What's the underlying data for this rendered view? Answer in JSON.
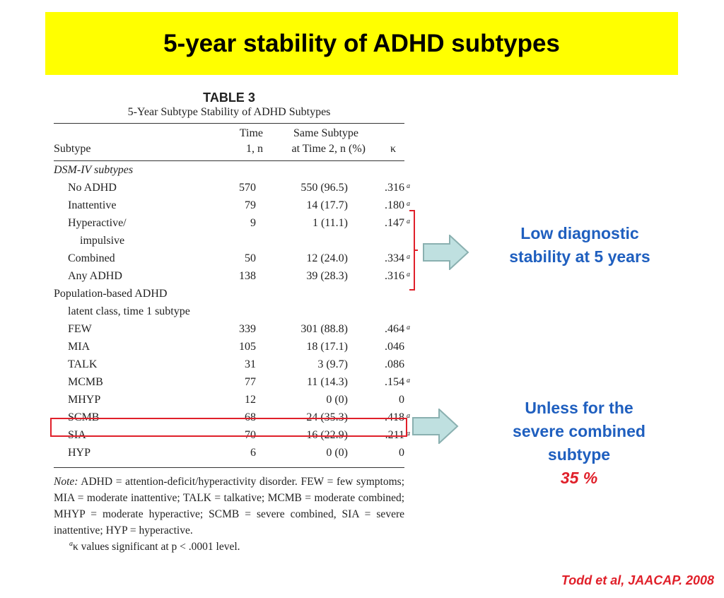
{
  "slide": {
    "title": "5-year stability of ADHD subtypes",
    "citation": "Todd et al, JAACAP. 2008",
    "colors": {
      "banner": "#ffff00",
      "callout": "#1f5fbf",
      "accent": "#e0202a",
      "arrow_fill": "#bfe0e0"
    }
  },
  "table": {
    "label": "TABLE 3",
    "caption": "5-Year Subtype Stability of ADHD Subtypes",
    "headers": {
      "subtype": "Subtype",
      "time1_line1": "Time",
      "time1_line2": "1, n",
      "same_line1": "Same Subtype",
      "same_line2": "at Time 2, n (%)",
      "kappa": "κ"
    },
    "sections": {
      "dsm": "DSM-IV subtypes",
      "pop_line1": "Population-based ADHD",
      "pop_line2": "latent class, time 1 subtype"
    },
    "dsm_rows": [
      {
        "subtype": "No ADHD",
        "n": "570",
        "same": "550 (96.5)",
        "kappa": ".316",
        "sig": "a"
      },
      {
        "subtype": "Inattentive",
        "n": "79",
        "same": "14 (17.7)",
        "kappa": ".180",
        "sig": "a"
      },
      {
        "subtype": "Hyperactive/",
        "subtype_cont": "impulsive",
        "n": "9",
        "same": "1 (11.1)",
        "kappa": ".147",
        "sig": "a"
      },
      {
        "subtype": "Combined",
        "n": "50",
        "same": "12 (24.0)",
        "kappa": ".334",
        "sig": "a"
      },
      {
        "subtype": "Any ADHD",
        "n": "138",
        "same": "39 (28.3)",
        "kappa": ".316",
        "sig": "a"
      }
    ],
    "pop_rows": [
      {
        "subtype": "FEW",
        "n": "339",
        "same": "301 (88.8)",
        "kappa": ".464",
        "sig": "a"
      },
      {
        "subtype": "MIA",
        "n": "105",
        "same": "18 (17.1)",
        "kappa": ".046",
        "sig": ""
      },
      {
        "subtype": "TALK",
        "n": "31",
        "same": "3 (9.7)",
        "kappa": ".086",
        "sig": ""
      },
      {
        "subtype": "MCMB",
        "n": "77",
        "same": "11 (14.3)",
        "kappa": ".154",
        "sig": "a"
      },
      {
        "subtype": "MHYP",
        "n": "12",
        "same": "0 (0)",
        "kappa": "0",
        "sig": ""
      },
      {
        "subtype": "SCMB",
        "n": "68",
        "same": "24 (35.3)",
        "kappa": ".418",
        "sig": "a"
      },
      {
        "subtype": "SIA",
        "n": "70",
        "same": "16 (22.9)",
        "kappa": ".211",
        "sig": "a"
      },
      {
        "subtype": "HYP",
        "n": "6",
        "same": "0 (0)",
        "kappa": "0",
        "sig": ""
      }
    ],
    "note_label": "Note:",
    "note_text": " ADHD = attention-deficit/hyperactivity disorder. FEW = few symptoms; MIA = moderate inattentive; TALK = talkative; MCMB = moderate combined; MHYP = moderate hyperactive; SCMB = severe combined, SIA = severe inattentive; HYP = hyperactive.",
    "footnote_mark": "a",
    "footnote_text": "κ values significant at p < .0001 level."
  },
  "callouts": {
    "low_line1": "Low diagnostic",
    "low_line2": "stability at 5 years",
    "unless_line1": "Unless for the",
    "unless_line2": "severe combined",
    "unless_line3": "subtype",
    "unless_pct": "35 %"
  }
}
